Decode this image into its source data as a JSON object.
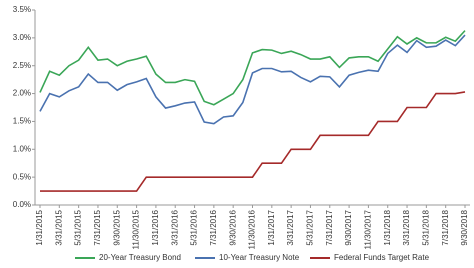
{
  "chart_data": {
    "type": "line",
    "categories": [
      "1/31/2015",
      null,
      "3/31/2015",
      null,
      "5/31/2015",
      null,
      "7/31/2015",
      null,
      "9/30/2015",
      null,
      "11/30/2015",
      null,
      "1/31/2016",
      null,
      "3/31/2016",
      null,
      "5/31/2016",
      null,
      "7/31/2016",
      null,
      "9/30/2016",
      null,
      "11/30/2016",
      null,
      "1/31/2017",
      null,
      "3/31/2017",
      null,
      "5/31/2017",
      null,
      "7/31/2017",
      null,
      "9/30/2017",
      null,
      "11/30/2017",
      null,
      "1/31/2018",
      null,
      "3/31/2018",
      null,
      "5/31/2018",
      null,
      "7/31/2018",
      null,
      "9/30/2018"
    ],
    "series": [
      {
        "name": "20-Year Treasury Bond",
        "color": "#3aa657",
        "values": [
          2.02,
          2.4,
          2.33,
          2.5,
          2.6,
          2.83,
          2.6,
          2.62,
          2.5,
          2.58,
          2.62,
          2.67,
          2.35,
          2.2,
          2.2,
          2.25,
          2.22,
          1.86,
          1.8,
          1.9,
          2.0,
          2.25,
          2.73,
          2.79,
          2.78,
          2.72,
          2.76,
          2.7,
          2.62,
          2.62,
          2.66,
          2.47,
          2.64,
          2.66,
          2.66,
          2.58,
          2.8,
          3.02,
          2.89,
          3.0,
          2.91,
          2.91,
          3.01,
          2.94,
          3.13
        ]
      },
      {
        "name": "10-Year Treasury Note",
        "color": "#4a72b0",
        "values": [
          1.68,
          2.0,
          1.94,
          2.05,
          2.12,
          2.35,
          2.2,
          2.2,
          2.06,
          2.16,
          2.21,
          2.27,
          1.94,
          1.74,
          1.78,
          1.83,
          1.85,
          1.49,
          1.46,
          1.58,
          1.6,
          1.84,
          2.37,
          2.45,
          2.45,
          2.39,
          2.4,
          2.29,
          2.21,
          2.31,
          2.3,
          2.12,
          2.33,
          2.38,
          2.42,
          2.4,
          2.72,
          2.87,
          2.74,
          2.95,
          2.83,
          2.85,
          2.96,
          2.86,
          3.05
        ]
      },
      {
        "name": "Federal Funds Target Rate",
        "color": "#a52a2a",
        "values": [
          0.25,
          0.25,
          0.25,
          0.25,
          0.25,
          0.25,
          0.25,
          0.25,
          0.25,
          0.25,
          0.25,
          0.5,
          0.5,
          0.5,
          0.5,
          0.5,
          0.5,
          0.5,
          0.5,
          0.5,
          0.5,
          0.5,
          0.5,
          0.75,
          0.75,
          0.75,
          1.0,
          1.0,
          1.0,
          1.25,
          1.25,
          1.25,
          1.25,
          1.25,
          1.25,
          1.5,
          1.5,
          1.5,
          1.75,
          1.75,
          1.75,
          2.0,
          2.0,
          2.0,
          2.03
        ]
      }
    ],
    "ylim": [
      0,
      3.5
    ],
    "yticks": [
      {
        "value": 0,
        "label": "0.0%"
      },
      {
        "value": 0.5,
        "label": "0.5%"
      },
      {
        "value": 1,
        "label": "1.0%"
      },
      {
        "value": 1.5,
        "label": "1.5%"
      },
      {
        "value": 2,
        "label": "2.0%"
      },
      {
        "value": 2.5,
        "label": "2.5%"
      },
      {
        "value": 3,
        "label": "3.0%"
      },
      {
        "value": 3.5,
        "label": "3.5%"
      }
    ],
    "grid": false,
    "legend": "bottom"
  }
}
